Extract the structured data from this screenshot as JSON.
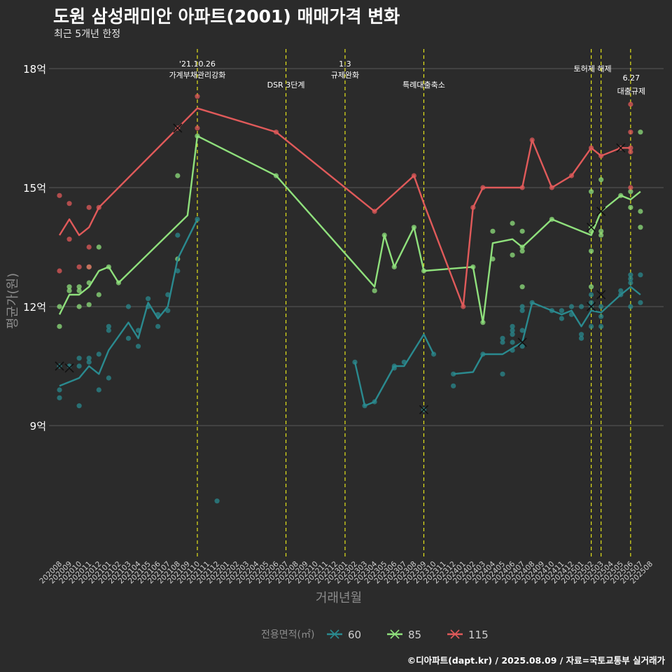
{
  "title": "도원 삼성래미안 아파트(2001) 매매가격 변화",
  "subtitle": "최근 5개년 한정",
  "caption": "©디아파트(dapt.kr) / 2025.08.09 / 자료=국토교통부 실거래가",
  "colors": {
    "background": "#2b2b2b",
    "grid": "#5a5a5a",
    "vline": "#e3e31a",
    "text": "#ffffff",
    "axis_title": "#8c8c8c"
  },
  "chart_data": {
    "type": "line",
    "xlabel": "거래년월",
    "ylabel": "평균가(원)",
    "y_unit": "억",
    "ylim": [
      5.7,
      18.6
    ],
    "yticks": [
      9,
      12,
      15,
      18
    ],
    "ytick_labels": [
      "9억",
      "12억",
      "15억",
      "18억"
    ],
    "x_start": "2020-08",
    "x_end": "2025-08",
    "x": [
      "202008",
      "202009",
      "202010",
      "202011",
      "202012",
      "202101",
      "202102",
      "202103",
      "202104",
      "202105",
      "202106",
      "202107",
      "202108",
      "202109",
      "202110",
      "202111",
      "202112",
      "202201",
      "202202",
      "202203",
      "202204",
      "202205",
      "202206",
      "202207",
      "202208",
      "202209",
      "202210",
      "202211",
      "202212",
      "202301",
      "202302",
      "202303",
      "202304",
      "202305",
      "202306",
      "202307",
      "202308",
      "202309",
      "202310",
      "202311",
      "202312",
      "202401",
      "202402",
      "202403",
      "202404",
      "202405",
      "202406",
      "202407",
      "202408",
      "202409",
      "202410",
      "202411",
      "202412",
      "202501",
      "202502",
      "202503",
      "202504",
      "202505",
      "202506",
      "202507",
      "202508"
    ],
    "legend_title": "전용면적(㎡)",
    "legend_position": "bottom",
    "grid": true,
    "events": [
      {
        "date": "2021-10",
        "date_label": "'21.10.26",
        "label": "가계부채관리강화"
      },
      {
        "date": "2022-07",
        "date_label": "",
        "label": "DSR 3단계"
      },
      {
        "date": "2023-01",
        "date_label": "1.3",
        "label": "규제완화"
      },
      {
        "date": "2023-09",
        "date_label": "",
        "label": "특례대출축소"
      },
      {
        "date": "2025-02",
        "date_label": "",
        "label": "토허제 해제"
      },
      {
        "date": "2025-03",
        "date_label": "",
        "label": ""
      },
      {
        "date": "2025-06",
        "date_label": "6.27",
        "label": "대출규제"
      }
    ],
    "series": [
      {
        "name": "60",
        "color": "#2a8a8f",
        "line": [
          [
            "2020-08",
            10.0
          ],
          [
            "2020-10",
            10.2
          ],
          [
            "2020-11",
            10.5
          ],
          [
            "2020-12",
            10.3
          ],
          [
            "2021-01",
            10.9
          ],
          [
            "2021-03",
            11.6
          ],
          [
            "2021-04",
            11.2
          ],
          [
            "2021-05",
            12.1
          ],
          [
            "2021-06",
            11.7
          ],
          [
            "2021-07",
            12.0
          ],
          [
            "2021-08",
            13.2
          ],
          [
            "2021-10",
            14.2
          ],
          null,
          [
            "2023-02",
            10.6
          ],
          [
            "2023-03",
            9.5
          ],
          [
            "2023-04",
            9.6
          ],
          [
            "2023-06",
            10.5
          ],
          [
            "2023-07",
            10.5
          ],
          [
            "2023-09",
            11.3
          ],
          [
            "2023-10",
            10.8
          ],
          null,
          [
            "2023-12",
            10.3
          ],
          [
            "2024-02",
            10.35
          ],
          [
            "2024-03",
            10.8
          ],
          [
            "2024-05",
            10.8
          ],
          [
            "2024-07",
            11.1
          ],
          [
            "2024-08",
            12.1
          ],
          [
            "2024-10",
            11.9
          ],
          [
            "2024-11",
            11.8
          ],
          [
            "2024-12",
            11.9
          ],
          [
            "2025-01",
            11.5
          ],
          [
            "2025-02",
            11.9
          ],
          [
            "2025-03",
            11.85
          ],
          [
            "2025-05",
            12.3
          ],
          [
            "2025-06",
            12.5
          ],
          [
            "2025-07",
            12.3
          ]
        ],
        "points": [
          [
            "2020-08",
            9.9
          ],
          [
            "2020-08",
            9.7
          ],
          [
            "2020-08",
            10.5
          ],
          [
            "2020-09",
            10.5
          ],
          [
            "2020-10",
            10.7
          ],
          [
            "2020-10",
            10.5
          ],
          [
            "2020-10",
            9.5
          ],
          [
            "2020-11",
            10.7
          ],
          [
            "2020-11",
            10.6
          ],
          [
            "2020-12",
            10.8
          ],
          [
            "2020-12",
            9.9
          ],
          [
            "2021-01",
            10.2
          ],
          [
            "2021-01",
            11.4
          ],
          [
            "2021-01",
            11.5
          ],
          [
            "2021-03",
            12.0
          ],
          [
            "2021-03",
            11.2
          ],
          [
            "2021-04",
            11.0
          ],
          [
            "2021-04",
            11.4
          ],
          [
            "2021-05",
            12.2
          ],
          [
            "2021-05",
            12.0
          ],
          [
            "2021-06",
            11.5
          ],
          [
            "2021-06",
            11.8
          ],
          [
            "2021-07",
            11.9
          ],
          [
            "2021-07",
            12.3
          ],
          [
            "2021-08",
            12.9
          ],
          [
            "2021-08",
            13.8
          ],
          [
            "2021-10",
            14.2
          ],
          [
            "2021-12",
            7.1
          ],
          [
            "2023-02",
            10.6
          ],
          [
            "2023-03",
            9.5
          ],
          [
            "2023-04",
            9.6
          ],
          [
            "2023-06",
            10.5
          ],
          [
            "2023-06",
            10.45
          ],
          [
            "2023-07",
            10.6
          ],
          [
            "2023-09",
            9.4
          ],
          [
            "2023-10",
            10.8
          ],
          [
            "2023-12",
            10.3
          ],
          [
            "2023-12",
            10.0
          ],
          [
            "2024-03",
            10.8
          ],
          [
            "2024-05",
            10.3
          ],
          [
            "2024-05",
            11.1
          ],
          [
            "2024-05",
            11.2
          ],
          [
            "2024-06",
            10.9
          ],
          [
            "2024-06",
            11.3
          ],
          [
            "2024-06",
            11.1
          ],
          [
            "2024-06",
            11.4
          ],
          [
            "2024-06",
            11.5
          ],
          [
            "2024-07",
            11.0
          ],
          [
            "2024-07",
            11.4
          ],
          [
            "2024-07",
            11.9
          ],
          [
            "2024-07",
            12.0
          ],
          [
            "2024-08",
            12.1
          ],
          [
            "2024-10",
            11.9
          ],
          [
            "2024-11",
            11.7
          ],
          [
            "2024-11",
            11.9
          ],
          [
            "2024-12",
            11.8
          ],
          [
            "2024-12",
            12.0
          ],
          [
            "2025-01",
            11.3
          ],
          [
            "2025-01",
            11.2
          ],
          [
            "2025-01",
            12.0
          ],
          [
            "2025-02",
            11.5
          ],
          [
            "2025-02",
            12.0
          ],
          [
            "2025-02",
            12.1
          ],
          [
            "2025-02",
            12.3
          ],
          [
            "2025-03",
            11.5
          ],
          [
            "2025-03",
            11.75
          ],
          [
            "2025-03",
            12.0
          ],
          [
            "2025-05",
            12.3
          ],
          [
            "2025-05",
            12.4
          ],
          [
            "2025-06",
            12.6
          ],
          [
            "2025-06",
            12.0
          ],
          [
            "2025-06",
            12.7
          ],
          [
            "2025-06",
            12.8
          ],
          [
            "2025-07",
            12.8
          ],
          [
            "2025-07",
            12.1
          ]
        ],
        "crosses": [
          [
            "2020-08",
            10.5
          ],
          [
            "2020-09",
            10.45
          ],
          [
            "2023-09",
            9.4
          ],
          [
            "2024-07",
            11.1
          ],
          [
            "2025-02",
            12.0
          ],
          [
            "2025-03",
            12.3
          ]
        ]
      },
      {
        "name": "85",
        "color": "#8fe07c",
        "line": [
          [
            "2020-08",
            11.8
          ],
          [
            "2020-09",
            12.3
          ],
          [
            "2020-10",
            12.3
          ],
          [
            "2020-11",
            12.5
          ],
          [
            "2020-12",
            12.9
          ],
          [
            "2021-01",
            13.0
          ],
          [
            "2021-02",
            12.6
          ],
          [
            "2021-09",
            14.3
          ],
          [
            "2021-10",
            16.3
          ],
          [
            "2022-06",
            15.3
          ],
          [
            "2023-04",
            12.5
          ],
          [
            "2023-05",
            13.8
          ],
          [
            "2023-06",
            13.0
          ],
          [
            "2023-08",
            14.0
          ],
          [
            "2023-09",
            12.9
          ],
          [
            "2024-02",
            13.0
          ],
          [
            "2024-03",
            11.6
          ],
          [
            "2024-04",
            13.6
          ],
          [
            "2024-06",
            13.7
          ],
          [
            "2024-07",
            13.5
          ],
          [
            "2024-10",
            14.2
          ],
          [
            "2025-02",
            13.8
          ],
          [
            "2025-03",
            14.4
          ],
          [
            "2025-05",
            14.8
          ],
          [
            "2025-06",
            14.7
          ],
          [
            "2025-07",
            14.9
          ]
        ],
        "points": [
          [
            "2020-08",
            11.5
          ],
          [
            "2020-08",
            12.0
          ],
          [
            "2020-09",
            12.4
          ],
          [
            "2020-09",
            12.5
          ],
          [
            "2020-10",
            12.4
          ],
          [
            "2020-10",
            12.5
          ],
          [
            "2020-10",
            12.0
          ],
          [
            "2020-11",
            12.6
          ],
          [
            "2020-11",
            12.05
          ],
          [
            "2020-11",
            13.0
          ],
          [
            "2020-12",
            13.5
          ],
          [
            "2020-12",
            12.3
          ],
          [
            "2021-01",
            13.0
          ],
          [
            "2021-02",
            12.6
          ],
          [
            "2021-08",
            15.3
          ],
          [
            "2021-08",
            13.2
          ],
          [
            "2021-10",
            16.3
          ],
          [
            "2022-06",
            15.3
          ],
          [
            "2023-04",
            12.4
          ],
          [
            "2023-05",
            13.8
          ],
          [
            "2023-06",
            13.0
          ],
          [
            "2023-08",
            14.0
          ],
          [
            "2023-09",
            12.9
          ],
          [
            "2024-02",
            13.0
          ],
          [
            "2024-03",
            11.6
          ],
          [
            "2024-04",
            13.9
          ],
          [
            "2024-04",
            13.2
          ],
          [
            "2024-06",
            13.3
          ],
          [
            "2024-06",
            14.1
          ],
          [
            "2024-07",
            13.5
          ],
          [
            "2024-07",
            13.4
          ],
          [
            "2024-07",
            13.9
          ],
          [
            "2024-07",
            12.5
          ],
          [
            "2024-10",
            14.2
          ],
          [
            "2025-02",
            14.0
          ],
          [
            "2025-02",
            13.9
          ],
          [
            "2025-02",
            13.4
          ],
          [
            "2025-02",
            14.9
          ],
          [
            "2025-02",
            12.5
          ],
          [
            "2025-03",
            15.2
          ],
          [
            "2025-03",
            13.9
          ],
          [
            "2025-03",
            13.8
          ],
          [
            "2025-05",
            14.8
          ],
          [
            "2025-06",
            14.9
          ],
          [
            "2025-06",
            14.5
          ],
          [
            "2025-07",
            16.4
          ],
          [
            "2025-07",
            14.4
          ],
          [
            "2025-07",
            14.0
          ]
        ],
        "crosses": [
          [
            "2025-02",
            14.0
          ],
          [
            "2025-03",
            14.4
          ]
        ]
      },
      {
        "name": "115",
        "color": "#e05a5a",
        "line": [
          [
            "2020-08",
            13.8
          ],
          [
            "2020-09",
            14.2
          ],
          [
            "2020-10",
            13.8
          ],
          [
            "2020-11",
            14.0
          ],
          [
            "2020-12",
            14.5
          ],
          [
            "2021-08",
            16.5
          ],
          [
            "2021-10",
            17.0
          ],
          [
            "2022-06",
            16.4
          ],
          [
            "2023-04",
            14.4
          ],
          [
            "2023-08",
            15.3
          ],
          [
            "2023-09",
            14.6
          ],
          [
            "2024-01",
            12.0
          ],
          [
            "2024-02",
            14.5
          ],
          [
            "2024-03",
            15.0
          ],
          [
            "2024-07",
            15.0
          ],
          [
            "2024-08",
            16.2
          ],
          [
            "2024-10",
            15.0
          ],
          [
            "2024-12",
            15.3
          ],
          [
            "2025-02",
            16.0
          ],
          [
            "2025-03",
            15.8
          ],
          [
            "2025-05",
            16.0
          ],
          [
            "2025-06",
            16.0
          ]
        ],
        "points": [
          [
            "2020-08",
            14.8
          ],
          [
            "2020-08",
            12.9
          ],
          [
            "2020-09",
            14.6
          ],
          [
            "2020-09",
            13.7
          ],
          [
            "2020-10",
            13.0
          ],
          [
            "2020-11",
            14.5
          ],
          [
            "2020-11",
            13.5
          ],
          [
            "2020-11",
            13.0
          ],
          [
            "2020-12",
            14.5
          ],
          [
            "2021-08",
            16.5
          ],
          [
            "2021-10",
            17.3
          ],
          [
            "2021-10",
            16.5
          ],
          [
            "2022-06",
            16.4
          ],
          [
            "2023-04",
            14.4
          ],
          [
            "2023-08",
            15.3
          ],
          [
            "2024-01",
            12.0
          ],
          [
            "2024-02",
            14.5
          ],
          [
            "2024-03",
            15.0
          ],
          [
            "2024-07",
            15.0
          ],
          [
            "2024-08",
            16.2
          ],
          [
            "2024-10",
            15.0
          ],
          [
            "2024-12",
            15.3
          ],
          [
            "2025-02",
            16.0
          ],
          [
            "2025-03",
            15.8
          ],
          [
            "2025-05",
            16.0
          ],
          [
            "2025-06",
            17.1
          ],
          [
            "2025-06",
            16.4
          ],
          [
            "2025-06",
            16.0
          ],
          [
            "2025-06",
            15.0
          ],
          [
            "2025-06",
            15.9
          ]
        ],
        "crosses": [
          [
            "2021-08",
            16.5
          ],
          [
            "2025-05",
            16.0
          ]
        ]
      }
    ]
  }
}
